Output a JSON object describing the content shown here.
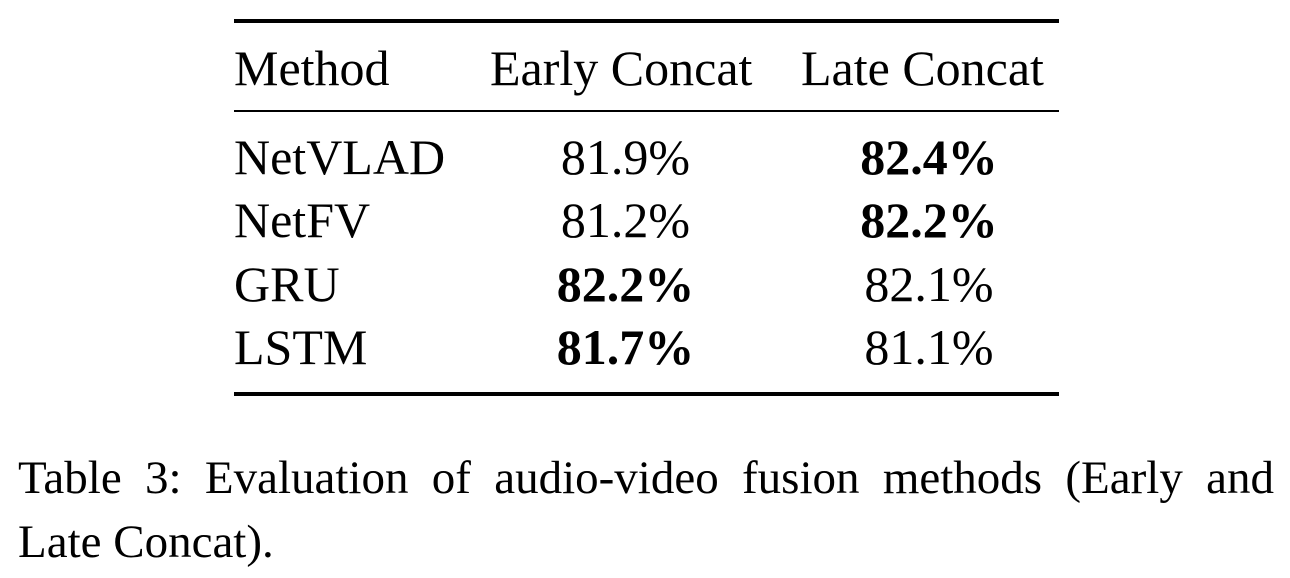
{
  "table": {
    "headers": [
      "Method",
      "Early Concat",
      "Late Concat"
    ],
    "rows": [
      {
        "method": "NetVLAD",
        "early": "81.9%",
        "late": "82.4%",
        "best": "late"
      },
      {
        "method": "NetFV",
        "early": "81.2%",
        "late": "82.2%",
        "best": "late"
      },
      {
        "method": "GRU",
        "early": "82.2%",
        "late": "82.1%",
        "best": "early"
      },
      {
        "method": "LSTM",
        "early": "81.7%",
        "late": "81.1%",
        "best": "early"
      }
    ]
  },
  "caption": "Table 3: Evaluation of audio-video fusion methods (Early and Late Concat)."
}
